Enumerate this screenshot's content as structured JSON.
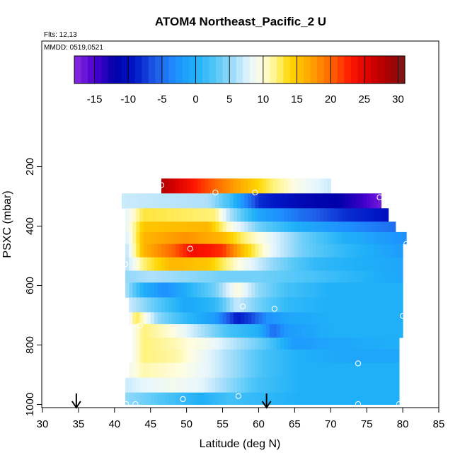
{
  "chart_data": {
    "type": "heatmap",
    "title": "ATOM4 Northeast_Pacific_2 U",
    "notes": [
      "Flts: 12,13",
      "MMDD: 0519,0521"
    ],
    "xlabel": "Latitude (deg N)",
    "ylabel": "PSXC (mbar)",
    "xlim": [
      30,
      85
    ],
    "ylim": [
      1000,
      0
    ],
    "y_reversed": true,
    "x_ticks": [
      30,
      35,
      40,
      45,
      50,
      55,
      60,
      65,
      70,
      75,
      80,
      85
    ],
    "y_ticks": [
      200,
      400,
      600,
      800,
      1000
    ],
    "colorbar": {
      "ticks": [
        -15,
        -10,
        -5,
        0,
        5,
        10,
        15,
        20,
        25,
        30
      ],
      "range": [
        -18,
        31
      ],
      "placement": "top"
    },
    "colormap": [
      {
        "v": -18,
        "color": "#8a2be2"
      },
      {
        "v": -15,
        "color": "#4b00cf"
      },
      {
        "v": -12,
        "color": "#0000a8"
      },
      {
        "v": -9,
        "color": "#0018c8"
      },
      {
        "v": -6,
        "color": "#1f5ce8"
      },
      {
        "v": -3,
        "color": "#1e90ff"
      },
      {
        "v": 0,
        "color": "#1fb0f8"
      },
      {
        "v": 3,
        "color": "#56c8f8"
      },
      {
        "v": 6,
        "color": "#aee0fa"
      },
      {
        "v": 8,
        "color": "#e6f6fd"
      },
      {
        "v": 10,
        "color": "#fffde0"
      },
      {
        "v": 12,
        "color": "#fff27a"
      },
      {
        "v": 14,
        "color": "#ffd700"
      },
      {
        "v": 17,
        "color": "#ffa500"
      },
      {
        "v": 20,
        "color": "#ff6800"
      },
      {
        "v": 23,
        "color": "#ff1500"
      },
      {
        "v": 26,
        "color": "#d50000"
      },
      {
        "v": 29,
        "color": "#a00000"
      },
      {
        "v": 31,
        "color": "#7a1a1a"
      }
    ],
    "bands": [
      {
        "p_top": 240,
        "p_bot": 290,
        "lat_start": 46.5,
        "lat_end": 70,
        "knots": [
          [
            46.5,
            28
          ],
          [
            51,
            23
          ],
          [
            56,
            18
          ],
          [
            62,
            12
          ],
          [
            66,
            9
          ],
          [
            70,
            7
          ]
        ]
      },
      {
        "p_top": 290,
        "p_bot": 340,
        "lat_start": 41,
        "lat_end": 77,
        "knots": [
          [
            41,
            7
          ],
          [
            53,
            6
          ],
          [
            56,
            2
          ],
          [
            60,
            -8
          ],
          [
            66,
            -11
          ],
          [
            71,
            -12
          ],
          [
            74,
            -14
          ],
          [
            77,
            -17
          ]
        ]
      },
      {
        "p_top": 340,
        "p_bot": 385,
        "lat_start": 41.5,
        "lat_end": 78,
        "knots": [
          [
            41.5,
            8
          ],
          [
            44,
            13
          ],
          [
            54,
            12
          ],
          [
            56,
            6
          ],
          [
            60,
            -1
          ],
          [
            66,
            -5
          ],
          [
            72,
            -8
          ],
          [
            76,
            -9
          ],
          [
            78,
            -10
          ]
        ]
      },
      {
        "p_top": 385,
        "p_bot": 420,
        "lat_start": 41.5,
        "lat_end": 79,
        "knots": [
          [
            41.5,
            8
          ],
          [
            44,
            15
          ],
          [
            53,
            16
          ],
          [
            56,
            10
          ],
          [
            60,
            4
          ],
          [
            65,
            0
          ],
          [
            72,
            -3
          ],
          [
            79,
            -5
          ]
        ]
      },
      {
        "p_top": 420,
        "p_bot": 460,
        "lat_start": 41.5,
        "lat_end": 80.5,
        "knots": [
          [
            41.5,
            7
          ],
          [
            44,
            16
          ],
          [
            50,
            18
          ],
          [
            55,
            16
          ],
          [
            58,
            12
          ],
          [
            62,
            8
          ],
          [
            66,
            4
          ],
          [
            72,
            0
          ],
          [
            80.5,
            -3
          ]
        ]
      },
      {
        "p_top": 460,
        "p_bot": 505,
        "lat_start": 41.5,
        "lat_end": 80,
        "knots": [
          [
            41.5,
            6
          ],
          [
            44,
            16
          ],
          [
            48,
            20
          ],
          [
            51,
            24
          ],
          [
            55,
            22
          ],
          [
            58,
            15
          ],
          [
            62,
            8
          ],
          [
            66,
            4
          ],
          [
            72,
            1
          ],
          [
            80,
            -2
          ]
        ]
      },
      {
        "p_top": 505,
        "p_bot": 550,
        "lat_start": 41.5,
        "lat_end": 80,
        "knots": [
          [
            41.5,
            6
          ],
          [
            44,
            12
          ],
          [
            48,
            16
          ],
          [
            53,
            15
          ],
          [
            58,
            9
          ],
          [
            62,
            5
          ],
          [
            68,
            1
          ],
          [
            74,
            0
          ],
          [
            80,
            -1
          ]
        ]
      },
      {
        "p_top": 550,
        "p_bot": 590,
        "lat_start": 41.5,
        "lat_end": 80,
        "knots": [
          [
            41.5,
            5
          ],
          [
            45,
            6
          ],
          [
            50,
            5
          ],
          [
            55,
            4
          ],
          [
            60,
            4
          ],
          [
            65,
            3
          ],
          [
            72,
            1
          ],
          [
            80,
            -1
          ]
        ]
      },
      {
        "p_top": 590,
        "p_bot": 640,
        "lat_start": 41.5,
        "lat_end": 80,
        "knots": [
          [
            41.5,
            6
          ],
          [
            44,
            0
          ],
          [
            47,
            -3
          ],
          [
            50,
            0
          ],
          [
            54,
            4
          ],
          [
            57,
            10
          ],
          [
            60,
            5
          ],
          [
            64,
            2
          ],
          [
            70,
            0
          ],
          [
            80,
            0
          ]
        ]
      },
      {
        "p_top": 640,
        "p_bot": 690,
        "lat_start": 42,
        "lat_end": 80,
        "knots": [
          [
            42,
            7
          ],
          [
            45,
            4
          ],
          [
            50,
            -1
          ],
          [
            54,
            1
          ],
          [
            57,
            7
          ],
          [
            60,
            4
          ],
          [
            64,
            1
          ],
          [
            70,
            0
          ],
          [
            80,
            0
          ]
        ]
      },
      {
        "p_top": 690,
        "p_bot": 730,
        "lat_start": 42,
        "lat_end": 80,
        "knots": [
          [
            42,
            8
          ],
          [
            43,
            13
          ],
          [
            46,
            5
          ],
          [
            50,
            1
          ],
          [
            54,
            -2
          ],
          [
            57,
            -9
          ],
          [
            59,
            -7
          ],
          [
            61,
            -3
          ],
          [
            64,
            -1
          ],
          [
            70,
            0
          ],
          [
            80,
            0
          ]
        ]
      },
      {
        "p_top": 730,
        "p_bot": 775,
        "lat_start": 42.5,
        "lat_end": 80,
        "knots": [
          [
            42.5,
            9
          ],
          [
            44,
            12
          ],
          [
            48,
            10
          ],
          [
            52,
            6
          ],
          [
            56,
            2
          ],
          [
            60,
            0
          ],
          [
            62,
            -5
          ],
          [
            64,
            -2
          ],
          [
            70,
            0
          ],
          [
            80,
            0
          ]
        ]
      },
      {
        "p_top": 775,
        "p_bot": 815,
        "lat_start": 42.5,
        "lat_end": 79.5,
        "knots": [
          [
            42.5,
            9
          ],
          [
            44,
            12
          ],
          [
            48,
            11
          ],
          [
            53,
            9
          ],
          [
            57,
            6
          ],
          [
            61,
            3
          ],
          [
            65,
            -2
          ],
          [
            70,
            -1
          ],
          [
            79.5,
            0
          ]
        ]
      },
      {
        "p_top": 815,
        "p_bot": 860,
        "lat_start": 42.5,
        "lat_end": 79.5,
        "knots": [
          [
            42.5,
            9
          ],
          [
            44,
            12
          ],
          [
            49,
            11
          ],
          [
            53,
            8
          ],
          [
            57,
            5
          ],
          [
            61,
            2
          ],
          [
            66,
            0
          ],
          [
            72,
            -1
          ],
          [
            79.5,
            -1
          ]
        ]
      },
      {
        "p_top": 860,
        "p_bot": 910,
        "lat_start": 42,
        "lat_end": 79.5,
        "knots": [
          [
            42,
            9
          ],
          [
            44,
            11
          ],
          [
            49,
            10
          ],
          [
            53,
            8
          ],
          [
            57,
            5
          ],
          [
            61,
            2
          ],
          [
            66,
            0
          ],
          [
            72,
            0
          ],
          [
            79.5,
            0
          ]
        ]
      },
      {
        "p_top": 910,
        "p_bot": 960,
        "lat_start": 41.5,
        "lat_end": 79.5,
        "knots": [
          [
            41.5,
            7
          ],
          [
            44,
            8
          ],
          [
            48,
            9
          ],
          [
            52,
            8
          ],
          [
            56,
            5
          ],
          [
            60,
            2
          ],
          [
            66,
            0
          ],
          [
            72,
            0
          ],
          [
            79.5,
            0
          ]
        ]
      },
      {
        "p_top": 960,
        "p_bot": 1000,
        "lat_start": 41.5,
        "lat_end": 79.5,
        "knots": [
          [
            41.5,
            5
          ],
          [
            44,
            4
          ],
          [
            48,
            2
          ],
          [
            52,
            0
          ],
          [
            56,
            2
          ],
          [
            60,
            1
          ],
          [
            66,
            0
          ],
          [
            72,
            0
          ],
          [
            79.5,
            0
          ]
        ]
      }
    ],
    "sample_points": [
      [
        46.5,
        262
      ],
      [
        69.5,
        228
      ],
      [
        54,
        287
      ],
      [
        59.5,
        287
      ],
      [
        76.8,
        303
      ],
      [
        50.5,
        476
      ],
      [
        80.5,
        460
      ],
      [
        41.5,
        528
      ],
      [
        57.8,
        670
      ],
      [
        62.2,
        678
      ],
      [
        80,
        702
      ],
      [
        43.5,
        735
      ],
      [
        73.8,
        862
      ],
      [
        57.2,
        972
      ],
      [
        49.5,
        982
      ],
      [
        41.6,
        1000
      ],
      [
        42.9,
        1000
      ],
      [
        73.8,
        1000
      ],
      [
        79.5,
        1000
      ]
    ],
    "arrows_lat": [
      34.7,
      61.1
    ]
  }
}
